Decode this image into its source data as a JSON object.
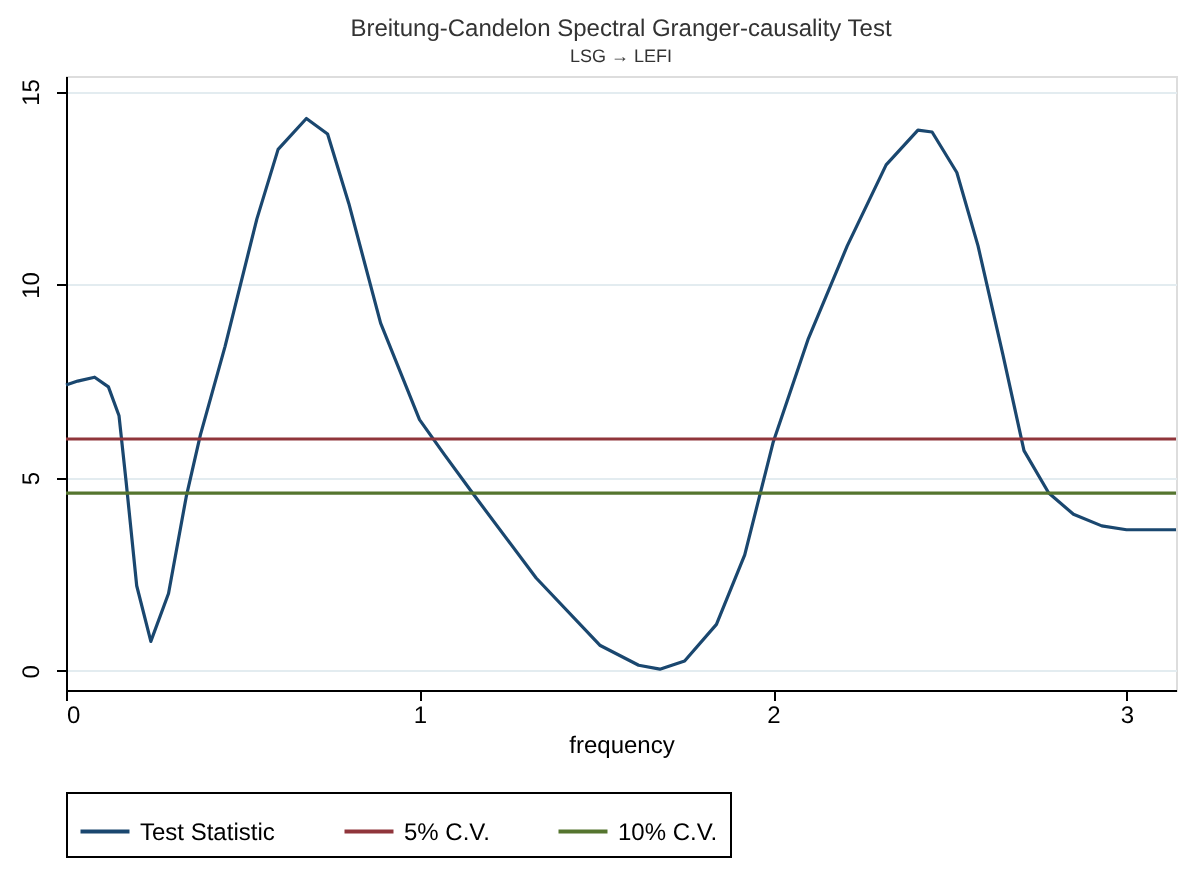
{
  "chart_data": {
    "type": "line",
    "title": "Breitung-Candelon Spectral Granger-causality Test",
    "subtitle": "LSG → LEFI",
    "xlabel": "frequency",
    "xlim": [
      0,
      3.14
    ],
    "xticks": [
      0,
      1,
      2,
      3
    ],
    "ylim": [
      -0.5,
      15.4
    ],
    "yticks": [
      0,
      5,
      10,
      15
    ],
    "grid": "y",
    "legend": "bottom",
    "series": [
      {
        "name": "Test Statistic",
        "color": "#1a476f",
        "x": [
          0,
          0.033,
          0.081,
          0.12,
          0.15,
          0.17,
          0.2,
          0.24,
          0.29,
          0.34,
          0.38,
          0.45,
          0.54,
          0.6,
          0.68,
          0.74,
          0.8,
          0.89,
          1.0,
          1.07,
          1.15,
          1.33,
          1.51,
          1.62,
          1.68,
          1.75,
          1.84,
          1.92,
          2.0,
          2.1,
          2.21,
          2.32,
          2.41,
          2.45,
          2.52,
          2.58,
          2.65,
          2.71,
          2.78,
          2.85,
          2.93,
          3.0,
          3.14
        ],
        "values": [
          7.4,
          7.5,
          7.6,
          7.35,
          6.6,
          4.9,
          2.2,
          0.76,
          2.0,
          4.5,
          6.1,
          8.4,
          11.7,
          13.5,
          14.3,
          13.9,
          12.1,
          9.0,
          6.5,
          5.6,
          4.6,
          2.4,
          0.66,
          0.14,
          0.04,
          0.25,
          1.2,
          3.0,
          5.9,
          8.6,
          11.0,
          13.1,
          14.0,
          13.95,
          12.9,
          11.0,
          8.2,
          5.7,
          4.6,
          4.05,
          3.75,
          3.65,
          3.65
        ]
      },
      {
        "name": "5% C.V.",
        "color": "#90353b",
        "x": [
          0,
          3.14
        ],
        "values": [
          6.0,
          6.0
        ]
      },
      {
        "name": "10% C.V.",
        "color": "#55752f",
        "x": [
          0,
          3.14
        ],
        "values": [
          4.6,
          4.6
        ]
      }
    ]
  }
}
